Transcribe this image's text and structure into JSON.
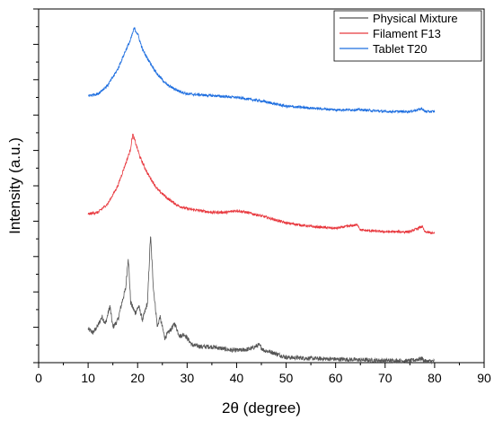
{
  "chart_data": {
    "type": "line",
    "title": "",
    "xlabel": "2θ (degree)",
    "ylabel": "Intensity (a.u.)",
    "xlim": [
      0,
      90
    ],
    "x_ticks": [
      "0",
      "10",
      "20",
      "30",
      "40",
      "50",
      "60",
      "70",
      "80",
      "90"
    ],
    "y_tick_labels_shown": false,
    "grid": false,
    "legend_position": "top-right",
    "series": [
      {
        "name": "Physical Mixture",
        "color": "#555555",
        "x_range": [
          10,
          80
        ],
        "points": [
          [
            10,
            0.095
          ],
          [
            11,
            0.085
          ],
          [
            12,
            0.105
          ],
          [
            12.8,
            0.13
          ],
          [
            13.5,
            0.11
          ],
          [
            14.4,
            0.16
          ],
          [
            15,
            0.1
          ],
          [
            16,
            0.12
          ],
          [
            17,
            0.18
          ],
          [
            17.6,
            0.21
          ],
          [
            18.1,
            0.3
          ],
          [
            18.6,
            0.17
          ],
          [
            19.5,
            0.14
          ],
          [
            20.2,
            0.16
          ],
          [
            21,
            0.12
          ],
          [
            22,
            0.17
          ],
          [
            22.6,
            0.36
          ],
          [
            23.2,
            0.21
          ],
          [
            24,
            0.1
          ],
          [
            24.5,
            0.13
          ],
          [
            25.5,
            0.07
          ],
          [
            26.5,
            0.09
          ],
          [
            27.5,
            0.11
          ],
          [
            28.5,
            0.075
          ],
          [
            29.5,
            0.08
          ],
          [
            31,
            0.05
          ],
          [
            33,
            0.045
          ],
          [
            35,
            0.045
          ],
          [
            37,
            0.04
          ],
          [
            39,
            0.035
          ],
          [
            41,
            0.035
          ],
          [
            43,
            0.04
          ],
          [
            44.5,
            0.05
          ],
          [
            45.5,
            0.035
          ],
          [
            47,
            0.03
          ],
          [
            50,
            0.015
          ],
          [
            55,
            0.012
          ],
          [
            60,
            0.01
          ],
          [
            65,
            0.008
          ],
          [
            70,
            0.006
          ],
          [
            75,
            0.005
          ],
          [
            77.5,
            0.012
          ],
          [
            78,
            0.004
          ],
          [
            80,
            0.004
          ]
        ]
      },
      {
        "name": "Filament F13",
        "color": "#e8393f",
        "x_range": [
          10,
          80
        ],
        "points": [
          [
            10,
            0.42
          ],
          [
            12,
            0.425
          ],
          [
            14,
            0.45
          ],
          [
            16,
            0.5
          ],
          [
            17.5,
            0.56
          ],
          [
            18.5,
            0.6
          ],
          [
            19,
            0.645
          ],
          [
            19.5,
            0.625
          ],
          [
            20.5,
            0.58
          ],
          [
            22,
            0.535
          ],
          [
            24,
            0.49
          ],
          [
            26,
            0.465
          ],
          [
            28,
            0.445
          ],
          [
            30,
            0.435
          ],
          [
            35,
            0.425
          ],
          [
            38,
            0.425
          ],
          [
            40,
            0.43
          ],
          [
            42,
            0.425
          ],
          [
            45,
            0.415
          ],
          [
            50,
            0.395
          ],
          [
            55,
            0.385
          ],
          [
            60,
            0.38
          ],
          [
            64.5,
            0.39
          ],
          [
            65,
            0.375
          ],
          [
            70,
            0.37
          ],
          [
            75,
            0.37
          ],
          [
            77.5,
            0.385
          ],
          [
            78,
            0.37
          ],
          [
            80,
            0.365
          ]
        ]
      },
      {
        "name": "Tablet T20",
        "color": "#1f6fe0",
        "x_range": [
          10,
          80
        ],
        "points": [
          [
            10,
            0.755
          ],
          [
            12,
            0.76
          ],
          [
            14,
            0.785
          ],
          [
            16,
            0.83
          ],
          [
            17.5,
            0.88
          ],
          [
            18.5,
            0.91
          ],
          [
            19.3,
            0.945
          ],
          [
            20,
            0.93
          ],
          [
            21,
            0.885
          ],
          [
            22,
            0.86
          ],
          [
            24,
            0.815
          ],
          [
            26,
            0.785
          ],
          [
            28,
            0.77
          ],
          [
            30,
            0.76
          ],
          [
            35,
            0.755
          ],
          [
            40,
            0.75
          ],
          [
            45,
            0.74
          ],
          [
            50,
            0.725
          ],
          [
            55,
            0.72
          ],
          [
            60,
            0.715
          ],
          [
            65,
            0.715
          ],
          [
            70,
            0.71
          ],
          [
            75,
            0.71
          ],
          [
            77.5,
            0.718
          ],
          [
            78,
            0.71
          ],
          [
            80,
            0.71
          ]
        ]
      }
    ]
  }
}
